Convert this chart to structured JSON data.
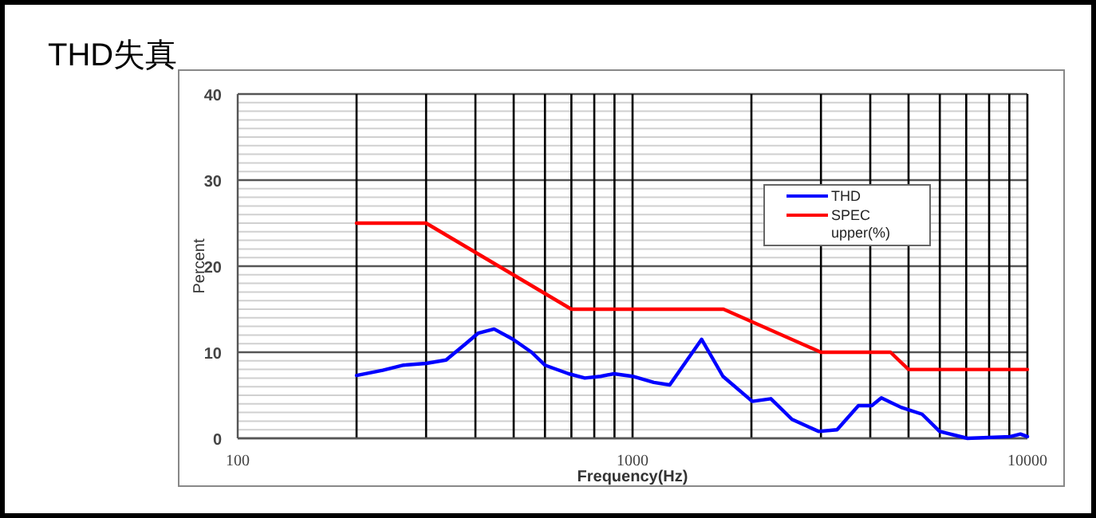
{
  "chart_data": {
    "type": "line",
    "title": "THD失真",
    "xlabel": "Frequency(Hz)",
    "ylabel": "Percent",
    "log": "x",
    "xlim": [
      100,
      10000
    ],
    "xticks": [
      100,
      1000,
      10000
    ],
    "ylim": [
      0,
      40
    ],
    "yticks": [
      0,
      10,
      20,
      30,
      40
    ],
    "grid": true,
    "legend": "top right",
    "marker": "none",
    "line_style": "solid",
    "series": [
      {
        "name": "THD",
        "color": "#0000ff",
        "x": [
          200,
          233,
          263,
          300,
          337,
          376,
          406,
          446,
          498,
          555,
          600,
          689,
          757,
          830,
          897,
          1000,
          1132,
          1242,
          1496,
          1694,
          2010,
          2240,
          2535,
          2958,
          3296,
          3733,
          4036,
          4267,
          4786,
          5410,
          5996,
          7050,
          9040,
          9600,
          10000
        ],
        "values": [
          7.3,
          7.9,
          8.5,
          8.7,
          9.1,
          10.9,
          12.2,
          12.7,
          11.5,
          10.0,
          8.5,
          7.5,
          7.0,
          7.2,
          7.5,
          7.2,
          6.5,
          6.2,
          11.5,
          7.2,
          4.3,
          4.6,
          2.2,
          0.8,
          1.0,
          3.8,
          3.8,
          4.7,
          3.6,
          2.8,
          0.8,
          0,
          0.2,
          0.5,
          0.2
        ]
      },
      {
        "name": "SPEC upper(%)",
        "color": "#ff0000",
        "x": [
          200,
          300,
          700,
          1700,
          3000,
          4500,
          5000,
          10000
        ],
        "values": [
          25,
          25,
          15,
          15,
          10,
          10,
          8,
          8
        ]
      }
    ]
  }
}
